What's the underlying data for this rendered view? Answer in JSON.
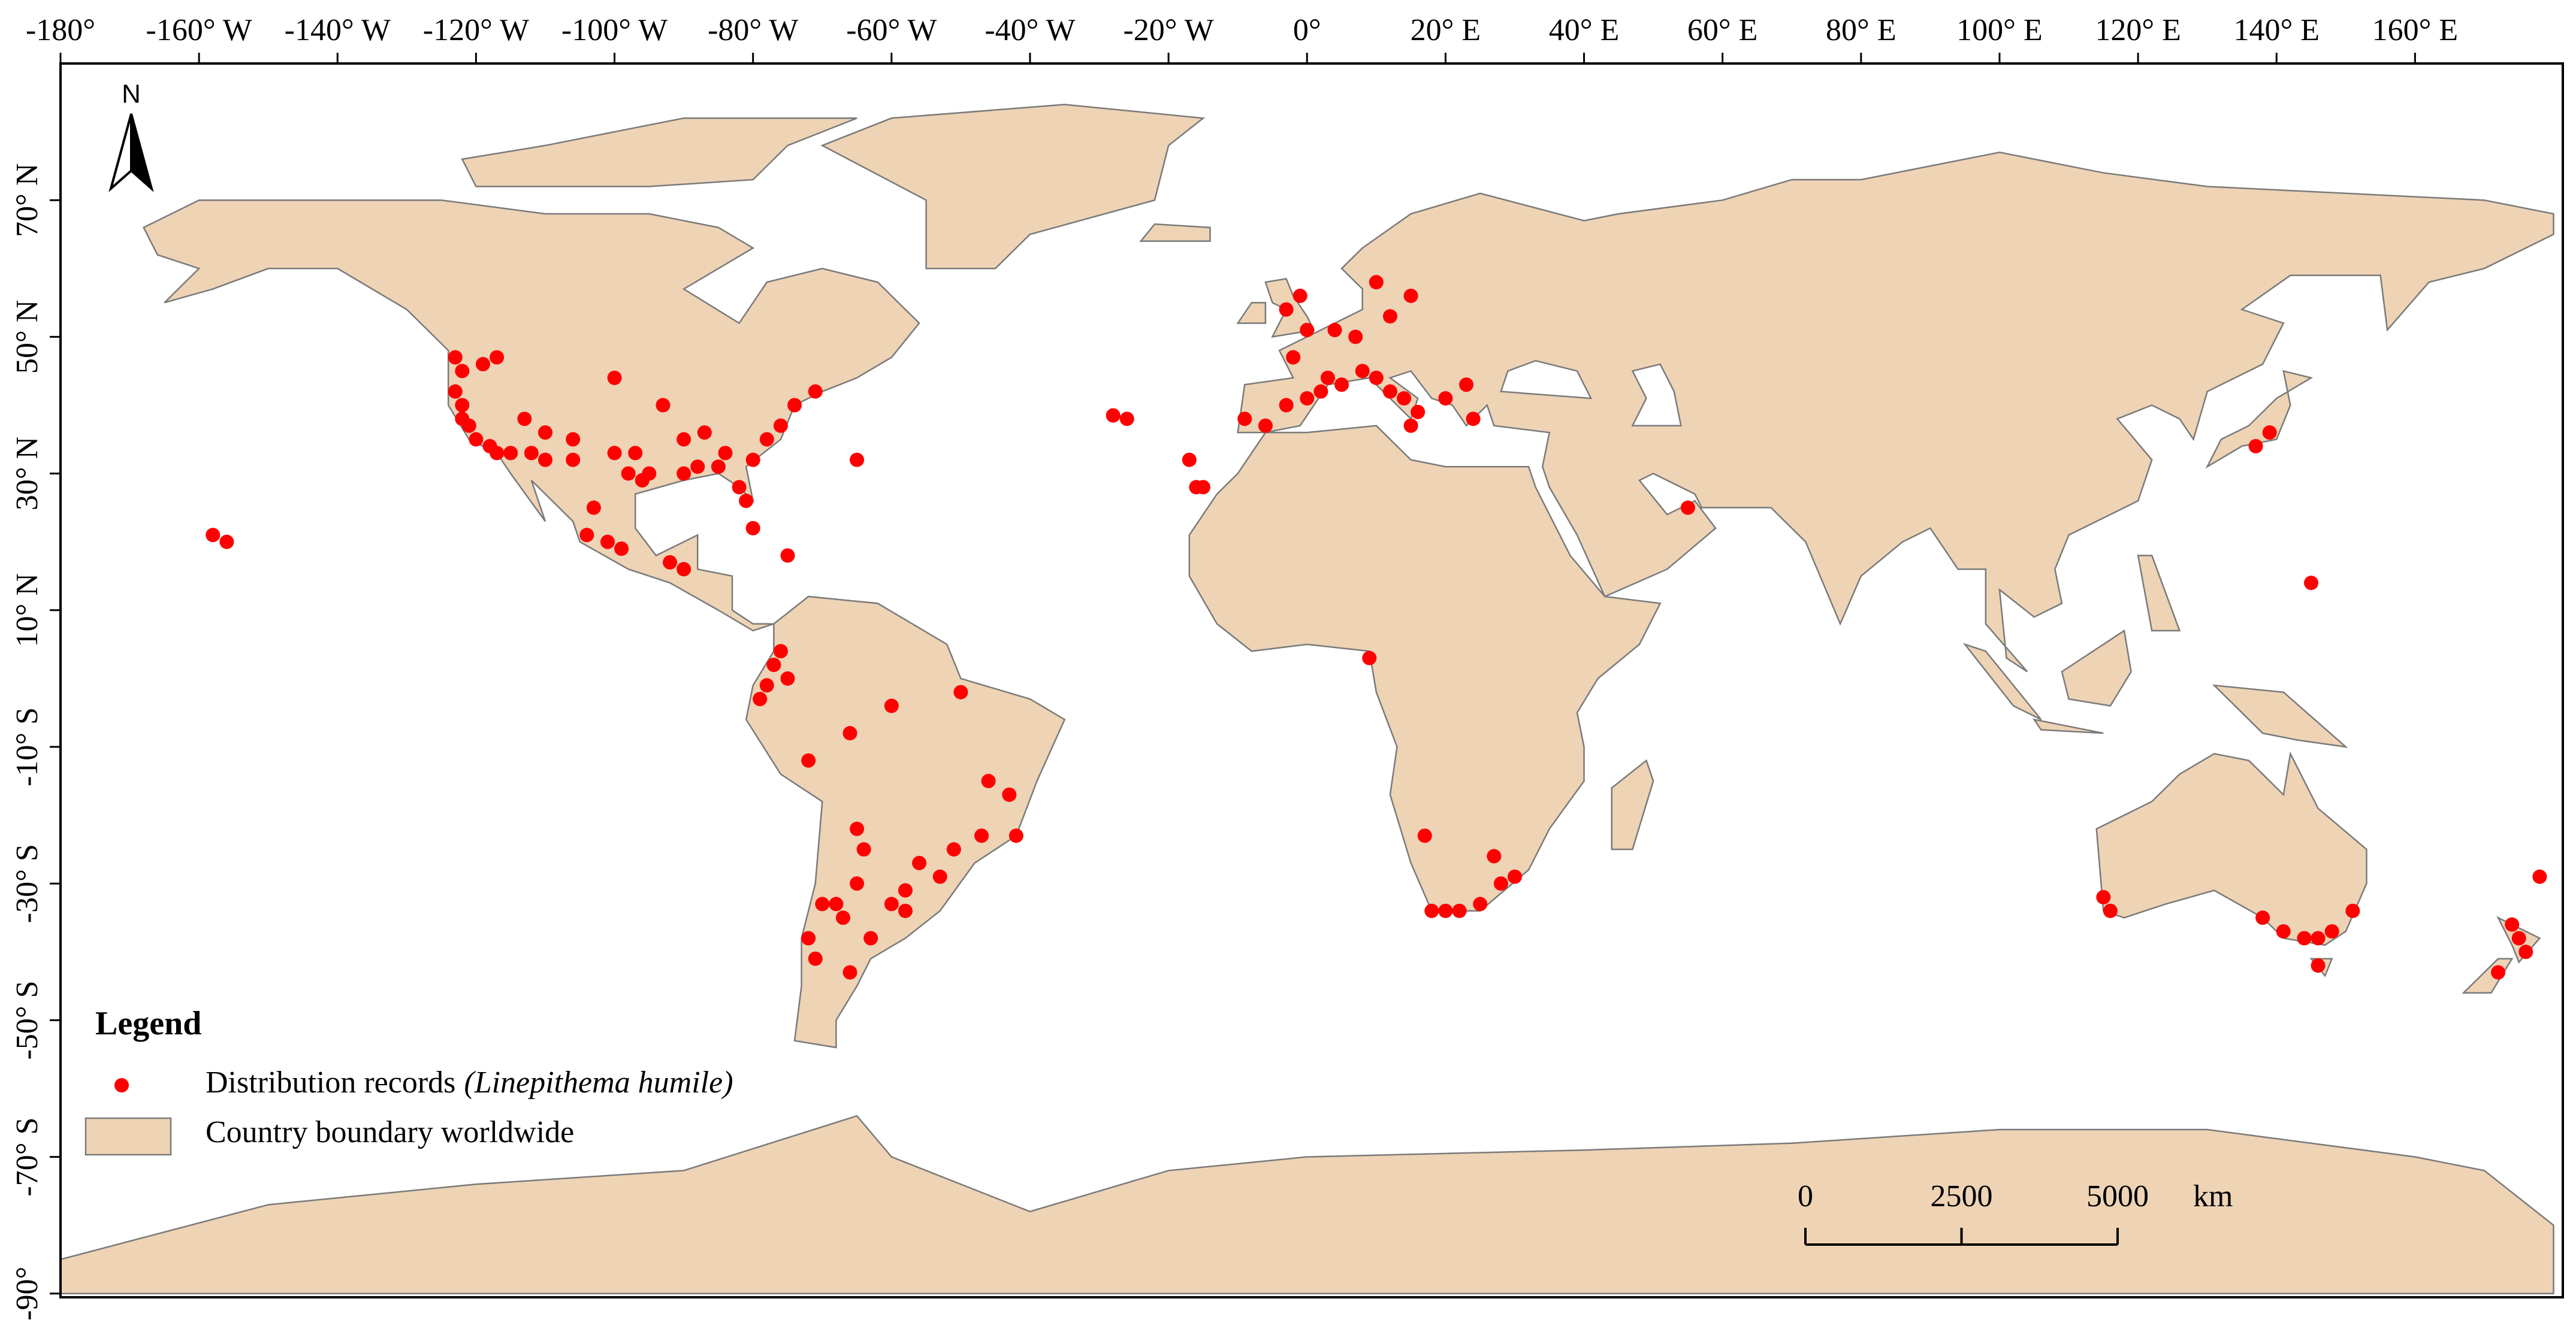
{
  "axes": {
    "x_ticks": [
      {
        "value": -180,
        "label": "-180°"
      },
      {
        "value": -160,
        "label": "-160° W"
      },
      {
        "value": -140,
        "label": "-140° W"
      },
      {
        "value": -120,
        "label": "-120° W"
      },
      {
        "value": -100,
        "label": "-100° W"
      },
      {
        "value": -80,
        "label": "-80° W"
      },
      {
        "value": -60,
        "label": "-60° W"
      },
      {
        "value": -40,
        "label": "-40° W"
      },
      {
        "value": -20,
        "label": "-20° W"
      },
      {
        "value": 0,
        "label": "0°"
      },
      {
        "value": 20,
        "label": "20° E"
      },
      {
        "value": 40,
        "label": "40° E"
      },
      {
        "value": 60,
        "label": "60° E"
      },
      {
        "value": 80,
        "label": "80° E"
      },
      {
        "value": 100,
        "label": "100° E"
      },
      {
        "value": 120,
        "label": "120° E"
      },
      {
        "value": 140,
        "label": "140° E"
      },
      {
        "value": 160,
        "label": "160° E"
      }
    ],
    "y_ticks": [
      {
        "value": 70,
        "label": "70° N"
      },
      {
        "value": 50,
        "label": "50° N"
      },
      {
        "value": 30,
        "label": "30° N"
      },
      {
        "value": 10,
        "label": "10° N"
      },
      {
        "value": -10,
        "label": "-10° S"
      },
      {
        "value": -30,
        "label": "-30° S"
      },
      {
        "value": -50,
        "label": "-50° S"
      },
      {
        "value": -70,
        "label": "-70° S"
      },
      {
        "value": -90,
        "label": "-90°"
      }
    ]
  },
  "north_arrow": "N",
  "legend": {
    "title": "Legend",
    "records_label": "Distribution records",
    "records_species": "(Linepithema humile)",
    "boundary_label": "Country boundary worldwide"
  },
  "scale_bar": {
    "ticks": [
      0,
      2500,
      5000
    ],
    "unit": "km"
  },
  "records": [
    [
      -122,
      38
    ],
    [
      -121,
      37
    ],
    [
      -120,
      35
    ],
    [
      -118,
      34
    ],
    [
      -117,
      33
    ],
    [
      -122,
      40
    ],
    [
      -123,
      42
    ],
    [
      -122,
      45
    ],
    [
      -123,
      47
    ],
    [
      -117,
      47
    ],
    [
      -119,
      46
    ],
    [
      -115,
      33
    ],
    [
      -112,
      33
    ],
    [
      -110,
      32
    ],
    [
      -106,
      32
    ],
    [
      -100,
      33
    ],
    [
      -97,
      33
    ],
    [
      -95,
      30
    ],
    [
      -98,
      30
    ],
    [
      -96,
      29
    ],
    [
      -90,
      30
    ],
    [
      -88,
      31
    ],
    [
      -85,
      31
    ],
    [
      -84,
      33
    ],
    [
      -82,
      28
    ],
    [
      -81,
      26
    ],
    [
      -80,
      32
    ],
    [
      -78,
      35
    ],
    [
      -76,
      37
    ],
    [
      -74,
      40
    ],
    [
      -71,
      42
    ],
    [
      -87,
      36
    ],
    [
      -90,
      35
    ],
    [
      -93,
      40
    ],
    [
      -100,
      44
    ],
    [
      -106,
      35
    ],
    [
      -110,
      36
    ],
    [
      -113,
      38
    ],
    [
      -104,
      21
    ],
    [
      -101,
      20
    ],
    [
      -99,
      19
    ],
    [
      -103,
      25
    ],
    [
      -90,
      16
    ],
    [
      -92,
      17
    ],
    [
      -80,
      22
    ],
    [
      -75,
      18
    ],
    [
      -65,
      32
    ],
    [
      -158,
      21
    ],
    [
      -156,
      20
    ],
    [
      -28,
      38.5
    ],
    [
      -26,
      38
    ],
    [
      -16,
      28
    ],
    [
      -15,
      28
    ],
    [
      -17,
      32
    ],
    [
      -9,
      38
    ],
    [
      -6,
      37
    ],
    [
      -3,
      40
    ],
    [
      0,
      41
    ],
    [
      2,
      42
    ],
    [
      3,
      44
    ],
    [
      5,
      43
    ],
    [
      8,
      45
    ],
    [
      10,
      44
    ],
    [
      12,
      42
    ],
    [
      14,
      41
    ],
    [
      16,
      39
    ],
    [
      15,
      37
    ],
    [
      -2,
      47
    ],
    [
      0,
      51
    ],
    [
      -3,
      54
    ],
    [
      -1,
      56
    ],
    [
      4,
      51
    ],
    [
      7,
      50
    ],
    [
      10,
      58
    ],
    [
      12,
      53
    ],
    [
      15,
      56
    ],
    [
      20,
      41
    ],
    [
      24,
      38
    ],
    [
      23,
      43
    ],
    [
      9,
      3
    ],
    [
      -77,
      2
    ],
    [
      -78,
      -1
    ],
    [
      -79,
      -3
    ],
    [
      -75,
      0
    ],
    [
      -76,
      4
    ],
    [
      -72,
      -12
    ],
    [
      -66,
      -8
    ],
    [
      -60,
      -4
    ],
    [
      -50,
      -2
    ],
    [
      -46,
      -15
    ],
    [
      -43,
      -17
    ],
    [
      -42,
      -23
    ],
    [
      -47,
      -23
    ],
    [
      -51,
      -25
    ],
    [
      -53,
      -29
    ],
    [
      -56,
      -27
    ],
    [
      -58,
      -31
    ],
    [
      -58,
      -34
    ],
    [
      -60,
      -33
    ],
    [
      -65,
      -30
    ],
    [
      -68,
      -33
    ],
    [
      -64,
      -25
    ],
    [
      -65,
      -22
    ],
    [
      -70,
      -33
    ],
    [
      -72,
      -38
    ],
    [
      -71,
      -41
    ],
    [
      -67,
      -35
    ],
    [
      -63,
      -38
    ],
    [
      -66,
      -43
    ],
    [
      18,
      -34
    ],
    [
      20,
      -34
    ],
    [
      22,
      -34
    ],
    [
      25,
      -33
    ],
    [
      28,
      -30
    ],
    [
      30,
      -29
    ],
    [
      27,
      -26
    ],
    [
      17,
      -23
    ],
    [
      55,
      25
    ],
    [
      137,
      34
    ],
    [
      139,
      36
    ],
    [
      145,
      14
    ],
    [
      115,
      -32
    ],
    [
      116,
      -34
    ],
    [
      138,
      -35
    ],
    [
      141,
      -37
    ],
    [
      144,
      -38
    ],
    [
      146,
      -38
    ],
    [
      148,
      -37
    ],
    [
      151,
      -34
    ],
    [
      146,
      -42
    ],
    [
      174,
      -36
    ],
    [
      175,
      -38
    ],
    [
      176,
      -40
    ],
    [
      172,
      -43
    ],
    [
      178,
      -29
    ]
  ]
}
